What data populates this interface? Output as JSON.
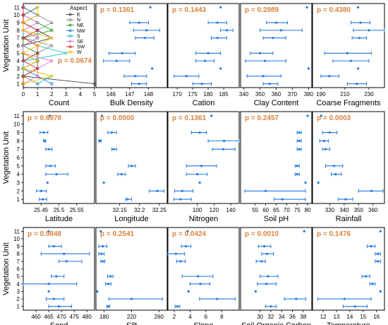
{
  "colors": {
    "point": "#1f77e0",
    "pvalue": "#d9823b",
    "frame": "#000000"
  },
  "ylabel": "Vegetation Unit",
  "yticks": [
    "1",
    "2",
    "3",
    "4",
    "5",
    "6",
    "7",
    "8",
    "9",
    "10",
    "11"
  ],
  "chart_data": [
    {
      "type": "line",
      "xlabel": "Count",
      "xlim": [
        0,
        5
      ],
      "xticks": [
        0,
        1,
        2,
        3,
        4,
        5
      ],
      "ylim": [
        0.5,
        11.5
      ],
      "pvalue": "p = 0.0674",
      "legend": {
        "title": "Aspect",
        "placement": "top-right",
        "entries": [
          "E",
          "N",
          "NE",
          "NW",
          "S",
          "SE",
          "SW",
          "W"
        ]
      },
      "series": [
        {
          "name": "E",
          "color": "#444444",
          "marker": "circle",
          "values": [
            5,
            0,
            1,
            1,
            0,
            0,
            2,
            1,
            0,
            0,
            1
          ]
        },
        {
          "name": "N",
          "color": "#8a8a8a",
          "marker": "triangle",
          "values": [
            1,
            0,
            0,
            1,
            1,
            2,
            0,
            1,
            2,
            1,
            0
          ]
        },
        {
          "name": "NE",
          "color": "#2ca02c",
          "marker": "square",
          "values": [
            0,
            0,
            0,
            1,
            1,
            0,
            0,
            2,
            1,
            0,
            0
          ]
        },
        {
          "name": "NW",
          "color": "#1f77e0",
          "marker": "square",
          "values": [
            2,
            1,
            0,
            1,
            0,
            0,
            1,
            1,
            0,
            1,
            0
          ]
        },
        {
          "name": "S",
          "color": "#17becf",
          "marker": "circle",
          "values": [
            1,
            2,
            0,
            0,
            3,
            1,
            0,
            0,
            1,
            0,
            0
          ]
        },
        {
          "name": "SE",
          "color": "#e377c2",
          "marker": "circle",
          "values": [
            0,
            1,
            1,
            2,
            0,
            0,
            1,
            0,
            1,
            0,
            0
          ]
        },
        {
          "name": "SW",
          "color": "#d62728",
          "marker": "circle",
          "values": [
            0,
            0,
            1,
            0,
            1,
            1,
            0,
            1,
            0,
            0,
            0
          ]
        },
        {
          "name": "W",
          "color": "#ffbf00",
          "marker": "circle",
          "values": [
            0,
            2,
            0,
            1,
            0,
            1,
            2,
            0,
            0,
            1,
            1
          ]
        }
      ]
    },
    {
      "type": "scatter",
      "xlabel": "Bulk Density",
      "pvalue": "p = 0.1361",
      "xlim": [
        145.2,
        149.0
      ],
      "xticks": [
        146,
        147,
        148
      ],
      "points": [
        [
          147.5,
          147.1,
          147.9
        ],
        [
          147.3,
          146.7,
          147.9
        ],
        [
          148.2,
          null,
          null
        ],
        [
          146.3,
          145.6,
          147.0
        ],
        [
          146.6,
          145.9,
          147.3
        ],
        null,
        [
          147.8,
          147.3,
          148.3
        ],
        [
          147.9,
          147.2,
          148.6
        ],
        [
          147.5,
          147.0,
          148.0
        ],
        null,
        [
          148.1,
          null,
          null
        ]
      ]
    },
    {
      "type": "scatter",
      "xlabel": "Cation",
      "pvalue": "p = 0.1443",
      "xlim": [
        167,
        190
      ],
      "xticks": [
        170,
        175,
        180,
        185
      ],
      "points": [
        [
          178,
          175,
          181
        ],
        [
          173,
          169,
          177
        ],
        [
          184,
          null,
          null
        ],
        [
          179,
          176,
          182
        ],
        [
          180,
          176,
          184
        ],
        null,
        [
          183,
          181,
          186
        ],
        [
          186,
          184,
          188
        ],
        [
          183,
          180,
          186
        ],
        null,
        [
          184,
          null,
          null
        ]
      ]
    },
    {
      "type": "scatter",
      "xlabel": "Clay Content",
      "pvalue": "p = 0.2989",
      "xlim": [
        338,
        382
      ],
      "xticks": [
        340,
        350,
        360,
        370,
        380
      ],
      "points": [
        [
          356,
          352,
          361
        ],
        [
          352,
          342,
          363
        ],
        [
          380,
          null,
          null
        ],
        [
          353,
          341,
          366
        ],
        [
          350,
          344,
          358
        ],
        null,
        [
          358,
          352,
          366
        ],
        [
          363,
          350,
          376
        ],
        [
          360,
          354,
          367
        ],
        null,
        [
          379,
          null,
          null
        ]
      ]
    },
    {
      "type": "scatter",
      "xlabel": "Coarse Fragments",
      "pvalue": "p = 0.4380",
      "xlim": [
        183,
        243
      ],
      "xticks": [
        190,
        210,
        230
      ],
      "points": [
        [
          220,
          212,
          228
        ],
        [
          197,
          190,
          205
        ],
        [
          221,
          null,
          null
        ],
        [
          215,
          200,
          230
        ],
        [
          212,
          193,
          232
        ],
        null,
        [
          222,
          216,
          228
        ],
        [
          230,
          217,
          243
        ],
        [
          223,
          215,
          231
        ],
        null,
        [
          221,
          null,
          null
        ]
      ]
    },
    {
      "type": "scatter",
      "xlabel": "Latitude",
      "pvalue": "p = 0.6978",
      "xlim": [
        25.4,
        25.6
      ],
      "xticks": [
        25.45,
        25.5,
        25.55
      ],
      "points": [
        [
          25.455,
          25.445,
          25.466
        ],
        [
          25.45,
          25.437,
          25.465
        ],
        [
          25.468,
          null,
          null
        ],
        [
          25.493,
          25.463,
          25.525
        ],
        [
          25.476,
          25.463,
          25.49
        ],
        null,
        [
          25.472,
          25.463,
          25.481
        ],
        [
          25.46,
          25.457,
          25.463
        ],
        [
          25.457,
          25.447,
          25.469
        ],
        null,
        [
          25.474,
          null,
          null
        ]
      ]
    },
    {
      "type": "scatter",
      "xlabel": "Longitude",
      "pvalue": "p = 0.0000",
      "xlim": [
        32.09,
        32.27
      ],
      "xticks": [
        32.15,
        32.2,
        32.25
      ],
      "points": [
        [
          32.17,
          32.165,
          32.18
        ],
        [
          32.245,
          32.225,
          32.262
        ],
        [
          32.11,
          null,
          null
        ],
        [
          32.155,
          32.145,
          32.165
        ],
        [
          32.18,
          32.172,
          32.19
        ],
        null,
        [
          32.135,
          32.13,
          32.142
        ],
        [
          32.1,
          32.097,
          32.103
        ],
        [
          32.13,
          32.12,
          32.142
        ],
        null,
        [
          32.105,
          null,
          null
        ]
      ]
    },
    {
      "type": "scatter",
      "xlabel": "Nitrogen",
      "pvalue": "p = 0.1361",
      "xlim": [
        65,
        150
      ],
      "xticks": [
        100,
        120,
        140
      ],
      "points": [
        [
          80,
          72,
          93
        ],
        [
          82,
          73,
          95
        ],
        [
          103,
          null,
          null
        ],
        [
          100,
          87,
          112
        ],
        [
          105,
          87,
          123
        ],
        null,
        [
          131,
          118,
          145
        ],
        [
          132,
          113,
          150
        ],
        [
          103,
          93,
          111
        ],
        null,
        [
          117,
          null,
          null
        ]
      ]
    },
    {
      "type": "scatter",
      "xlabel": "Soil pH",
      "pvalue": "p = 0.2457",
      "xlim": [
        48,
        82
      ],
      "xticks": [
        55,
        60,
        65,
        70,
        75,
        80
      ],
      "points": [
        [
          68,
          64,
          79
        ],
        [
          60,
          50,
          79
        ],
        [
          79,
          null,
          null
        ],
        [
          75,
          74,
          76
        ],
        [
          75,
          74,
          76
        ],
        null,
        [
          76,
          75,
          77
        ],
        [
          76,
          75,
          77
        ],
        [
          76,
          75,
          77
        ],
        null,
        [
          80,
          null,
          null
        ]
      ]
    },
    {
      "type": "scatter",
      "xlabel": "Rainfall",
      "pvalue": "p = 0.0003",
      "xlim": [
        318,
        368
      ],
      "xticks": [
        330,
        340,
        350,
        360
      ],
      "points": [
        [
          341,
          336,
          346
        ],
        [
          359,
          350,
          367
        ],
        [
          322,
          null,
          null
        ],
        [
          334,
          331,
          338
        ],
        [
          333,
          327,
          339
        ],
        null,
        [
          327,
          325,
          330
        ],
        [
          326,
          323,
          329
        ],
        [
          330,
          325,
          335
        ],
        null,
        [
          324,
          null,
          null
        ]
      ]
    },
    {
      "type": "scatter",
      "xlabel": "Sand",
      "pvalue": "p = 0.9848",
      "xlim": [
        455,
        483
      ],
      "xticks": [
        460,
        465,
        470,
        475,
        480
      ],
      "points": [
        [
          469,
          465,
          474
        ],
        [
          467,
          464,
          471
        ],
        [
          465,
          null,
          null
        ],
        [
          465,
          455,
          476
        ],
        [
          468,
          466,
          471
        ],
        null,
        [
          472,
          469,
          478
        ],
        [
          471,
          462,
          481
        ],
        [
          467,
          465,
          470
        ],
        null,
        [
          465,
          null,
          null
        ]
      ]
    },
    {
      "type": "scatter",
      "xlabel": "Silt",
      "pvalue": "p = 0.2541",
      "xlim": [
        168,
        272
      ],
      "xticks": [
        180,
        220,
        260
      ],
      "points": [
        [
          186,
          184,
          188
        ],
        [
          220,
          187,
          265
        ],
        [
          170,
          null,
          null
        ],
        [
          186,
          182,
          190
        ],
        [
          189,
          185,
          193
        ],
        null,
        [
          178,
          175,
          181
        ],
        [
          176,
          172,
          180
        ],
        [
          178,
          172,
          184
        ],
        null,
        [
          175,
          null,
          null
        ]
      ]
    },
    {
      "type": "scatter",
      "xlabel": "Slope",
      "pvalue": "p = 0.0424",
      "xlim": [
        1.2,
        10.2
      ],
      "xticks": [
        2,
        4,
        6,
        8
      ],
      "points": [
        [
          2.4,
          2.1,
          2.7
        ],
        [
          7.4,
          5.2,
          9.7
        ],
        [
          3.8,
          null,
          null
        ],
        [
          5.3,
          4.0,
          6.5
        ],
        [
          5.0,
          3.0,
          6.9
        ],
        null,
        [
          2.8,
          2.3,
          3.4
        ],
        [
          2.2,
          1.2,
          3.3
        ],
        [
          3.5,
          2.9,
          4.1
        ],
        null,
        [
          3.7,
          null,
          null
        ]
      ]
    },
    {
      "type": "scatter",
      "xlabel": "Soil Organic Carbon",
      "pvalue": "p = 0.0010",
      "xlim": [
        26.4,
        39.6
      ],
      "xticks": [
        30,
        32,
        34,
        36,
        38
      ],
      "points": [
        [
          32,
          31,
          33
        ],
        [
          36.7,
          34.5,
          38.5
        ],
        [
          29.2,
          null,
          null
        ],
        [
          31.2,
          29.5,
          33.0
        ],
        [
          31.5,
          30.0,
          33.3
        ],
        null,
        [
          30.3,
          29.3,
          31.0
        ],
        [
          31.3,
          30.3,
          32.5
        ],
        [
          30.8,
          29.7,
          32.0
        ],
        null,
        [
          38.2,
          null,
          null
        ]
      ]
    },
    {
      "type": "scatter",
      "xlabel": "Temperature",
      "pvalue": "p = 0.1476",
      "xlim": [
        11.2,
        16.6
      ],
      "xticks": [
        12,
        13,
        14,
        15,
        16
      ],
      "points": [
        [
          14.4,
          13.5,
          15.3
        ],
        [
          13.6,
          11.6,
          15.6
        ],
        [
          16.3,
          null,
          null
        ],
        [
          15.7,
          15.5,
          15.9
        ],
        [
          15.2,
          14.9,
          15.5
        ],
        null,
        [
          16.1,
          15.9,
          16.3
        ],
        [
          16.1,
          15.9,
          16.3
        ],
        [
          15.6,
          15.3,
          15.9
        ],
        null,
        [
          16.3,
          null,
          null
        ]
      ]
    }
  ]
}
